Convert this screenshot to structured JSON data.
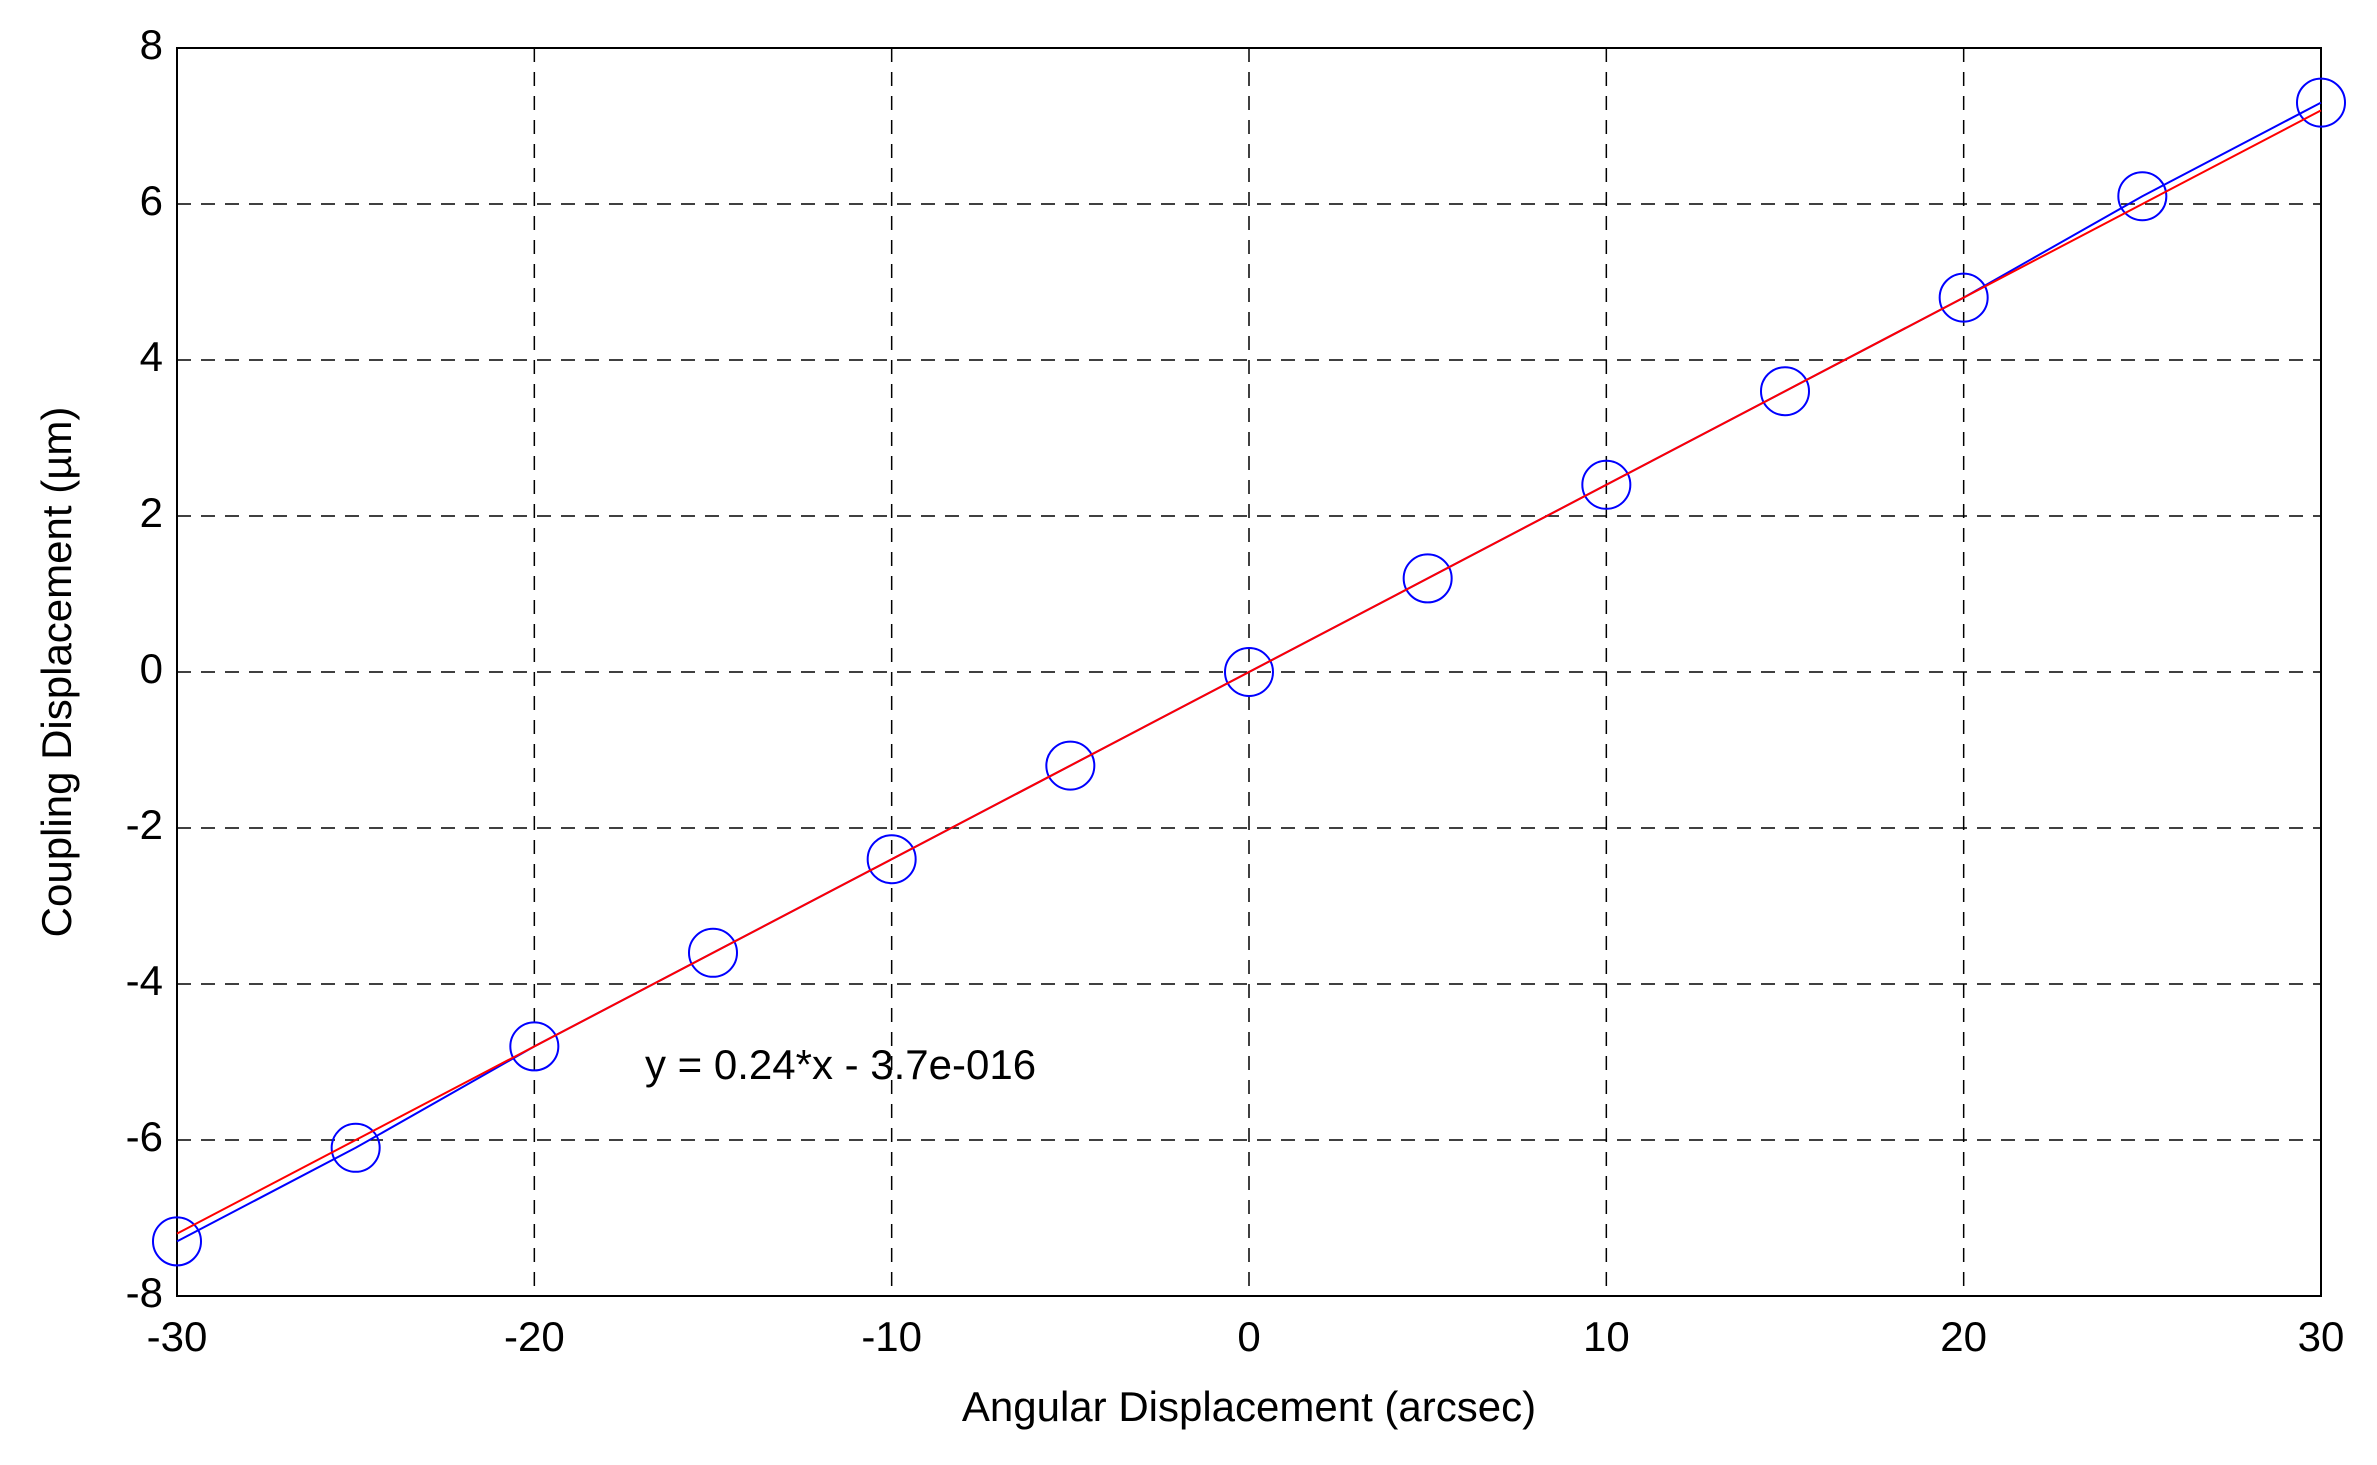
{
  "chart_data": {
    "type": "line",
    "x_label": "Angular Displacement (arcsec)",
    "y_label": "Coupling Displacement (µm)",
    "annotation": "y = 0.24*x - 3.7e-016",
    "x": [
      -30,
      -25,
      -20,
      -15,
      -10,
      -5,
      0,
      5,
      10,
      15,
      20,
      25,
      30
    ],
    "series": [
      {
        "color": "#0000ff",
        "marker": "circle",
        "values": [
          -7.3,
          -6.1,
          -4.8,
          -3.6,
          -2.4,
          -1.2,
          0,
          1.2,
          2.4,
          3.6,
          4.8,
          6.1,
          7.3
        ]
      },
      {
        "color": "#ff0000",
        "x": [
          -30,
          30
        ],
        "values": [
          -7.2,
          7.2
        ]
      }
    ],
    "xlim": [
      -30,
      30
    ],
    "xticks": [
      -30,
      -20,
      -10,
      0,
      10,
      20,
      30
    ],
    "ylim": [
      -8,
      8
    ],
    "yticks": [
      -8,
      -6,
      -4,
      -2,
      0,
      2,
      4,
      6,
      8
    ],
    "grid": true
  }
}
